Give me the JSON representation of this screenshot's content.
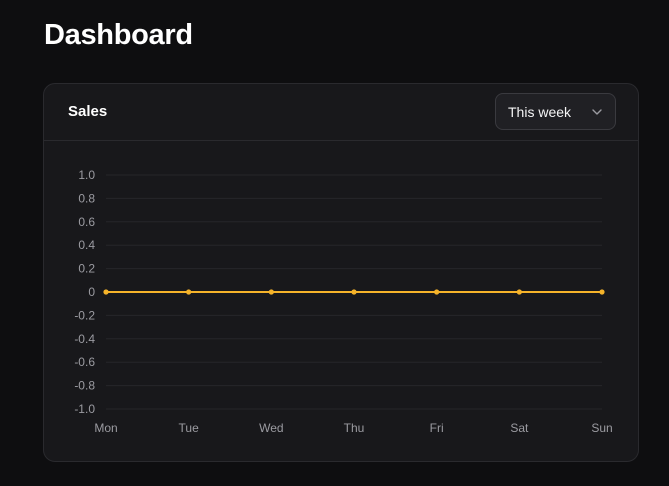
{
  "page": {
    "title": "Dashboard"
  },
  "card": {
    "title": "Sales",
    "period_select": {
      "value": "This week"
    }
  },
  "colors": {
    "background": "#0e0e10",
    "card": "#18181b",
    "border": "#2a2a2e",
    "grid": "#26262a",
    "tick_text": "#9b9ba1",
    "series": "#f5b32a"
  },
  "chart_data": {
    "type": "line",
    "categories": [
      "Mon",
      "Tue",
      "Wed",
      "Thu",
      "Fri",
      "Sat",
      "Sun"
    ],
    "series": [
      {
        "values": [
          0,
          0,
          0,
          0,
          0,
          0,
          0
        ]
      }
    ],
    "yticks": [
      "1.0",
      "0.8",
      "0.6",
      "0.4",
      "0.2",
      "0",
      "-0.2",
      "-0.4",
      "-0.6",
      "-0.8",
      "-1.0"
    ],
    "ylim": [
      -1,
      1
    ],
    "grid": true,
    "legend": "none"
  }
}
